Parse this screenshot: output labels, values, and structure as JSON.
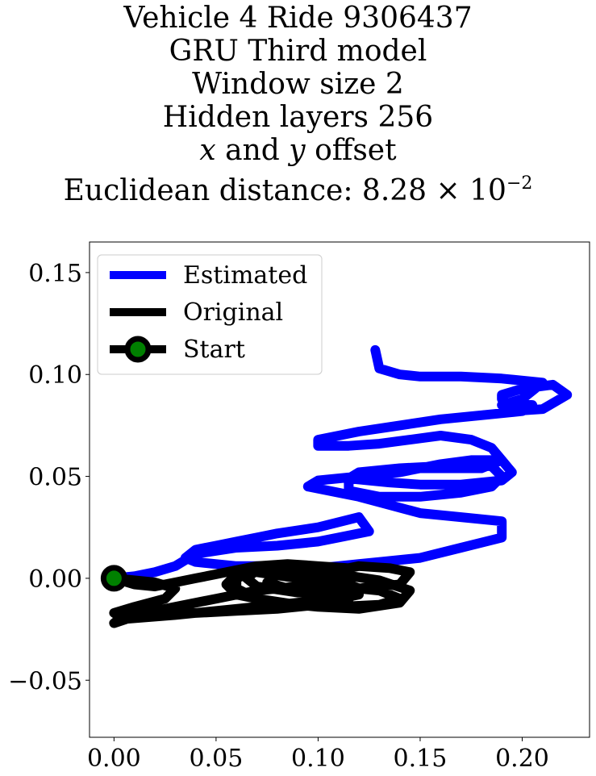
{
  "title": {
    "line1": "Vehicle 4 Ride 9306437",
    "line2": "GRU Third model",
    "line3": "Window size 2",
    "line4": "Hidden layers 256",
    "line5_x": "x",
    "line5_and": " and ",
    "line5_y": "y",
    "line5_rest": " offset",
    "line6_prefix": "Euclidean distance: 8.28 × 10",
    "line6_exp": "−2"
  },
  "colors": {
    "estimated": "#0000ff",
    "original": "#000000",
    "start_fill": "#008000",
    "start_edge": "#000000"
  },
  "chart_data": {
    "type": "line",
    "xlim": [
      -0.012,
      0.233
    ],
    "ylim": [
      -0.078,
      0.165
    ],
    "x_ticks": [
      0.0,
      0.05,
      0.1,
      0.15,
      0.2
    ],
    "x_tick_labels": [
      "0.00",
      "0.05",
      "0.10",
      "0.15",
      "0.20"
    ],
    "y_ticks": [
      -0.05,
      0.0,
      0.05,
      0.1,
      0.15
    ],
    "y_tick_labels": [
      "−0.05",
      "0.00",
      "0.05",
      "0.10",
      "0.15"
    ],
    "legend_position": "upper-left",
    "legend": [
      "Estimated",
      "Original",
      "Start"
    ],
    "series": [
      {
        "name": "Estimated",
        "color": "#0000ff",
        "x": [
          0.0,
          0.01,
          0.02,
          0.03,
          0.035,
          0.04,
          0.06,
          0.08,
          0.09,
          0.1,
          0.11,
          0.125,
          0.12,
          0.1,
          0.08,
          0.07,
          0.06,
          0.05,
          0.04,
          0.035,
          0.04,
          0.06,
          0.08,
          0.09,
          0.1,
          0.11,
          0.12,
          0.13,
          0.15,
          0.17,
          0.19,
          0.19,
          0.17,
          0.15,
          0.135,
          0.12,
          0.11,
          0.095,
          0.1,
          0.12,
          0.14,
          0.16,
          0.175,
          0.19,
          0.195,
          0.19,
          0.17,
          0.15,
          0.135,
          0.115,
          0.12,
          0.14,
          0.16,
          0.185,
          0.19,
          0.185,
          0.17,
          0.15,
          0.13,
          0.115,
          0.115,
          0.125,
          0.14,
          0.16,
          0.18,
          0.19,
          0.185,
          0.175,
          0.16,
          0.145,
          0.13,
          0.115,
          0.1,
          0.1,
          0.12,
          0.14,
          0.16,
          0.18,
          0.2,
          0.205,
          0.193,
          0.19,
          0.19,
          0.2,
          0.215,
          0.222,
          0.21,
          0.195,
          0.19,
          0.2,
          0.21,
          0.19,
          0.17,
          0.15,
          0.14,
          0.13,
          0.128
        ],
        "y": [
          0.0,
          0.001,
          0.003,
          0.006,
          0.009,
          0.012,
          0.015,
          0.016,
          0.017,
          0.018,
          0.02,
          0.023,
          0.03,
          0.025,
          0.022,
          0.02,
          0.018,
          0.016,
          0.014,
          0.01,
          0.008,
          0.006,
          0.006,
          0.006,
          0.005,
          0.006,
          0.007,
          0.008,
          0.01,
          0.015,
          0.02,
          0.028,
          0.03,
          0.032,
          0.036,
          0.04,
          0.042,
          0.045,
          0.048,
          0.05,
          0.052,
          0.056,
          0.058,
          0.058,
          0.052,
          0.048,
          0.046,
          0.046,
          0.047,
          0.049,
          0.052,
          0.054,
          0.055,
          0.055,
          0.05,
          0.045,
          0.042,
          0.04,
          0.04,
          0.043,
          0.048,
          0.052,
          0.054,
          0.054,
          0.054,
          0.058,
          0.064,
          0.068,
          0.07,
          0.068,
          0.066,
          0.065,
          0.065,
          0.068,
          0.072,
          0.075,
          0.078,
          0.08,
          0.082,
          0.085,
          0.086,
          0.088,
          0.09,
          0.093,
          0.095,
          0.09,
          0.083,
          0.082,
          0.085,
          0.088,
          0.096,
          0.098,
          0.099,
          0.099,
          0.1,
          0.103,
          0.112
        ]
      },
      {
        "name": "Original",
        "color": "#000000",
        "x": [
          0.0,
          0.02,
          0.03,
          0.025,
          0.01,
          0.0,
          0.005,
          0.03,
          0.06,
          0.09,
          0.11,
          0.12,
          0.11,
          0.09,
          0.07,
          0.06,
          0.055,
          0.06,
          0.08,
          0.1,
          0.12,
          0.14,
          0.145,
          0.13,
          0.11,
          0.09,
          0.07,
          0.06,
          0.06,
          0.07,
          0.09,
          0.11,
          0.13,
          0.14,
          0.13,
          0.11,
          0.09,
          0.07,
          0.05,
          0.03,
          0.015,
          0.0,
          0.005,
          0.02,
          0.04,
          0.06,
          0.08,
          0.1,
          0.115,
          0.12,
          0.11,
          0.1,
          0.08,
          0.07,
          0.065,
          0.07,
          0.09,
          0.11,
          0.115,
          0.105,
          0.09,
          0.08,
          0.075,
          0.085,
          0.1,
          0.12,
          0.14,
          0.145,
          0.135,
          0.12,
          0.115,
          0.1,
          0.085,
          0.07,
          0.06,
          0.05,
          0.04,
          0.03,
          0.02,
          0.01,
          0.0
        ],
        "y": [
          0.0,
          -0.002,
          -0.005,
          -0.01,
          -0.014,
          -0.017,
          -0.02,
          -0.018,
          -0.015,
          -0.012,
          -0.01,
          -0.008,
          -0.004,
          0.0,
          0.003,
          0.002,
          -0.003,
          -0.008,
          -0.012,
          -0.014,
          -0.015,
          -0.012,
          -0.006,
          -0.001,
          0.002,
          0.004,
          0.004,
          0.0,
          -0.005,
          -0.01,
          -0.013,
          -0.014,
          -0.013,
          -0.01,
          -0.006,
          -0.004,
          -0.004,
          -0.006,
          -0.01,
          -0.014,
          -0.017,
          -0.022,
          -0.018,
          -0.017,
          -0.017,
          -0.016,
          -0.015,
          -0.013,
          -0.01,
          -0.005,
          -0.001,
          0.002,
          0.004,
          0.004,
          0.0,
          -0.004,
          -0.007,
          -0.007,
          -0.003,
          0.0,
          0.002,
          0.002,
          -0.002,
          -0.005,
          -0.006,
          -0.005,
          -0.003,
          0.003,
          0.005,
          0.006,
          0.005,
          0.006,
          0.007,
          0.006,
          0.004,
          0.002,
          0.0,
          -0.002,
          -0.004,
          -0.003,
          0.0
        ]
      }
    ],
    "start_point": {
      "name": "Start",
      "x": 0.0,
      "y": 0.0
    }
  }
}
